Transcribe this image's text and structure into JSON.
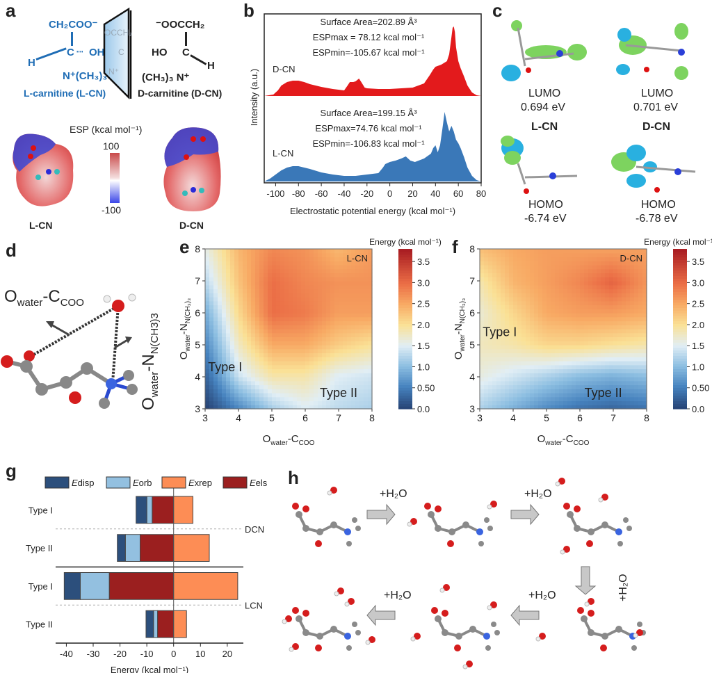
{
  "panels": {
    "a": {
      "label": "a",
      "l_structure": {
        "top": "CH₂COO⁻",
        "oh": "OH",
        "h": "H",
        "c": "C",
        "n": "N⁺(CH₃)₃",
        "name": "L-carnitine (L-CN)"
      },
      "d_structure": {
        "top": "⁻OOCCH₂",
        "oh": "HO",
        "h": "H",
        "c": "C",
        "n": "(CH₃)₃ N⁺",
        "name": "D-carnitine (D-CN)"
      },
      "mirror_ghost": {
        "top": "OCCH₂",
        "c": "C",
        "n": "N⁺"
      },
      "esp_title": "ESP (kcal mol⁻¹)",
      "esp_max": "100",
      "esp_min": "-100",
      "l_label": "L-CN",
      "d_label": "D-CN"
    },
    "b": {
      "label": "b"
    },
    "c": {
      "label": "c",
      "l_lumo": {
        "title": "LUMO",
        "value": "0.694 eV"
      },
      "d_lumo": {
        "title": "LUMO",
        "value": "0.701 eV"
      },
      "l_name": "L-CN",
      "d_name": "D-CN",
      "l_homo": {
        "title": "HOMO",
        "value": "-6.74 eV"
      },
      "d_homo": {
        "title": "HOMO",
        "value": "-6.78 eV"
      }
    },
    "d": {
      "label": "d",
      "dist1": "O",
      "dist1_sub": "water",
      "dist1_mid": "-C",
      "dist1_sub2": "COO",
      "dist2": "O",
      "dist2_sub": "water",
      "dist2_mid": "-N",
      "dist2_sub2": "N(CH3)3"
    },
    "e": {
      "label": "e"
    },
    "f": {
      "label": "f"
    },
    "g": {
      "label": "g"
    },
    "h": {
      "label": "h",
      "arrow_label": "+H₂O",
      "steps": 5
    }
  },
  "chart_data": [
    {
      "id": "b",
      "type": "area",
      "title": "",
      "xlabel": "Electrostatic potential energy (kcal mol⁻¹)",
      "ylabel": "Intensity (a.u.)",
      "xlim": [
        -110,
        80
      ],
      "xticks": [
        -100,
        -80,
        -60,
        -40,
        -20,
        0,
        20,
        40,
        60,
        80
      ],
      "series": [
        {
          "name": "D-CN",
          "color": "#e31a1c",
          "annotations": [
            "Surface Area=202.89 Å³",
            "ESPmax = 78.12 kcal mol⁻¹",
            "ESPmin=-105.67 kcal mol⁻¹"
          ],
          "x": [
            -110,
            -102,
            -98,
            -95,
            -90,
            -85,
            -80,
            -75,
            -70,
            -60,
            -50,
            -40,
            -37,
            -35,
            -32,
            -30,
            -27,
            -25,
            -22,
            -20,
            -10,
            0,
            10,
            20,
            30,
            35,
            38,
            40,
            45,
            48,
            50,
            52,
            54,
            55,
            56,
            57,
            58,
            60,
            62,
            65,
            68,
            72,
            76,
            80
          ],
          "y": [
            0.0,
            0.02,
            0.08,
            0.15,
            0.2,
            0.22,
            0.22,
            0.2,
            0.17,
            0.13,
            0.1,
            0.08,
            0.15,
            0.2,
            0.2,
            0.21,
            0.25,
            0.2,
            0.12,
            0.11,
            0.1,
            0.1,
            0.11,
            0.12,
            0.18,
            0.3,
            0.38,
            0.42,
            0.45,
            0.48,
            0.5,
            0.6,
            0.85,
            0.98,
            1.0,
            0.92,
            0.7,
            0.5,
            0.4,
            0.28,
            0.15,
            0.05,
            0.01,
            0.0
          ]
        },
        {
          "name": "L-CN",
          "color": "#3a78b8",
          "annotations": [
            "Surface Area=199.15 Å³",
            "ESPmax=74.76 kcal mol⁻¹",
            "ESPmin=-106.83 kcal mol⁻¹"
          ],
          "x": [
            -110,
            -105,
            -100,
            -95,
            -90,
            -85,
            -80,
            -75,
            -70,
            -60,
            -50,
            -40,
            -30,
            -20,
            -10,
            -6,
            -4,
            0,
            5,
            10,
            14,
            18,
            22,
            30,
            36,
            38,
            40,
            42,
            44,
            46,
            48,
            50,
            52,
            54,
            56,
            58,
            60,
            62,
            65,
            68,
            72,
            76,
            80
          ],
          "y": [
            0.0,
            0.04,
            0.1,
            0.16,
            0.2,
            0.22,
            0.22,
            0.2,
            0.18,
            0.13,
            0.1,
            0.08,
            0.08,
            0.1,
            0.12,
            0.2,
            0.25,
            0.28,
            0.3,
            0.33,
            0.36,
            0.3,
            0.28,
            0.33,
            0.4,
            0.48,
            0.52,
            0.42,
            0.52,
            0.75,
            1.0,
            0.85,
            0.72,
            0.8,
            0.72,
            0.6,
            0.55,
            0.48,
            0.35,
            0.2,
            0.08,
            0.02,
            0.0
          ]
        }
      ]
    },
    {
      "id": "e",
      "type": "heatmap",
      "title": "L-CN",
      "xlabel": "O_water-C_COO",
      "ylabel": "O_water-N_N(CH3)3",
      "xlim": [
        3,
        8
      ],
      "ylim": [
        3,
        8
      ],
      "xticks": [
        3,
        4,
        5,
        6,
        7,
        8
      ],
      "yticks": [
        3,
        4,
        5,
        6,
        7,
        8
      ],
      "colorbar_title": "Energy (kcal mol⁻¹)",
      "colorbar_range": [
        0.0,
        3.8
      ],
      "colorbar_ticks": [
        "0.0",
        "0.50",
        "1.0",
        "1.5",
        "2.0",
        "2.5",
        "3.0",
        "3.5"
      ],
      "annotations": [
        {
          "text": "Type I",
          "x": 3.6,
          "y": 4.3
        },
        {
          "text": "Type II",
          "x": 7.0,
          "y": 3.5
        }
      ],
      "grid_x": [
        3,
        4,
        5,
        6,
        7,
        8
      ],
      "grid_y": [
        3,
        4,
        5,
        6,
        7,
        8
      ],
      "z": [
        [
          0.0,
          0.6,
          1.2,
          1.5,
          1.3,
          1.2
        ],
        [
          0.3,
          1.4,
          1.9,
          1.9,
          1.5,
          1.4
        ],
        [
          0.6,
          1.8,
          2.5,
          2.5,
          2.2,
          2.0
        ],
        [
          0.9,
          2.1,
          3.0,
          2.9,
          2.6,
          2.6
        ],
        [
          1.3,
          2.3,
          3.0,
          2.8,
          2.7,
          2.7
        ],
        [
          1.6,
          2.4,
          2.8,
          2.7,
          2.4,
          2.6
        ]
      ]
    },
    {
      "id": "f",
      "type": "heatmap",
      "title": "D-CN",
      "xlabel": "O_water-C_COO",
      "ylabel": "O_water-N_N(CH3)3",
      "xlim": [
        3,
        8
      ],
      "ylim": [
        3,
        8
      ],
      "xticks": [
        3,
        4,
        5,
        6,
        7,
        8
      ],
      "yticks": [
        3,
        4,
        5,
        6,
        7,
        8
      ],
      "colorbar_title": "Energy (kcal mol⁻¹)",
      "colorbar_range": [
        0.0,
        3.8
      ],
      "colorbar_ticks": [
        "0.0",
        "0.50",
        "1.0",
        "1.5",
        "2.0",
        "2.5",
        "3.0",
        "3.5"
      ],
      "annotations": [
        {
          "text": "Type I",
          "x": 3.6,
          "y": 5.4
        },
        {
          "text": "Type II",
          "x": 6.7,
          "y": 3.5
        }
      ],
      "grid_x": [
        3,
        4,
        5,
        6,
        7,
        8
      ],
      "grid_y": [
        3,
        4,
        5,
        6,
        7,
        8
      ],
      "z": [
        [
          1.2,
          0.9,
          0.6,
          0.4,
          0.3,
          0.4
        ],
        [
          1.6,
          1.4,
          1.2,
          1.0,
          0.9,
          1.0
        ],
        [
          1.8,
          1.9,
          2.1,
          2.1,
          2.0,
          1.9
        ],
        [
          1.7,
          2.1,
          2.5,
          2.6,
          2.6,
          2.5
        ],
        [
          1.9,
          2.4,
          2.6,
          2.8,
          3.1,
          2.7
        ],
        [
          2.3,
          2.5,
          2.6,
          2.6,
          2.6,
          2.6
        ]
      ]
    },
    {
      "id": "g",
      "type": "bar",
      "orientation": "horizontal-stacked",
      "xlabel": "Energy (kcal mol⁻¹)",
      "xlim": [
        -44,
        26
      ],
      "xticks": [
        -40,
        -30,
        -20,
        -10,
        0,
        10,
        20
      ],
      "legend": [
        "Edisp",
        "Eorb",
        "Exrep",
        "Eels"
      ],
      "legend_placement": "top",
      "colors": {
        "Edisp": "#2c4f7c",
        "Eorb": "#93c0e0",
        "Exrep": "#fd8d55",
        "Eels": "#9b1f1f"
      },
      "groups": [
        {
          "name": "DCN",
          "rows": [
            {
              "label": "Type I",
              "Eels": -8.0,
              "Eorb": -2.0,
              "Edisp": -4.0,
              "Exrep": 7.2
            },
            {
              "label": "Type II",
              "Eels": -12.5,
              "Eorb": -5.5,
              "Edisp": -3.0,
              "Exrep": 13.3
            }
          ]
        },
        {
          "name": "LCN",
          "rows": [
            {
              "label": "Type I",
              "Eels": -24.0,
              "Eorb": -10.8,
              "Edisp": -6.0,
              "Exrep": 23.9
            },
            {
              "label": "Type II",
              "Eels": -6.0,
              "Eorb": -1.5,
              "Edisp": -2.8,
              "Exrep": 4.8
            }
          ]
        }
      ]
    }
  ]
}
